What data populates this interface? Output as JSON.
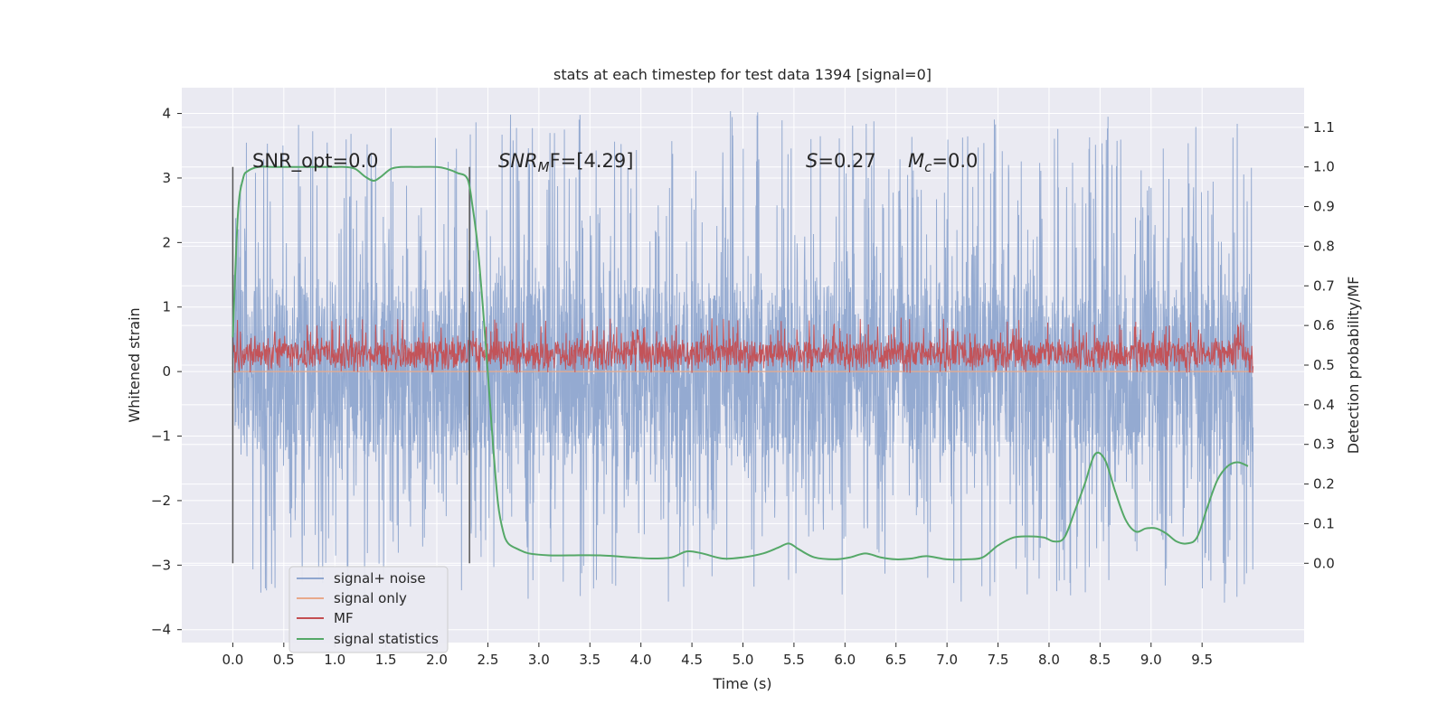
{
  "chart_data": {
    "type": "line",
    "title": "stats at each timestep for test data 1394 [signal=0]",
    "xlabel": "Time (s)",
    "ylabel": "Whitened strain",
    "y2label": "Detection probability/MF",
    "xlim": [
      -0.5,
      10.5
    ],
    "ylim": [
      -4.2,
      4.4
    ],
    "y2lim": [
      -0.2,
      1.2
    ],
    "x_ticks": [
      "0.0",
      "0.5",
      "1.0",
      "1.5",
      "2.0",
      "2.5",
      "3.0",
      "3.5",
      "4.0",
      "4.5",
      "5.0",
      "5.5",
      "6.0",
      "6.5",
      "7.0",
      "7.5",
      "8.0",
      "8.5",
      "9.0",
      "9.5"
    ],
    "y_ticks": [
      "4",
      "3",
      "2",
      "1",
      "0",
      "−1",
      "−2",
      "−3",
      "−4"
    ],
    "y2_ticks": [
      "1.1",
      "1.0",
      "0.9",
      "0.8",
      "0.7",
      "0.6",
      "0.5",
      "0.4",
      "0.3",
      "0.2",
      "0.1",
      "0.0"
    ],
    "grid": true,
    "legend_position": "lower-left",
    "annotations": {
      "snr_opt": "SNR_opt=0.0",
      "snr_mf_base": "SNR",
      "snr_mf_sub": "M",
      "snr_mf_rest": "F=[4.29]",
      "s_label": "S",
      "s_value": "=0.27",
      "mc_label": "M",
      "mc_sub": "c",
      "mc_value": "=0.0"
    },
    "vertical_markers_x": [
      0.0,
      2.32
    ],
    "series": [
      {
        "name": "signal+ noise",
        "color": "#8fa6cf",
        "axis": "left",
        "style": "dense-noise",
        "x_range": [
          0.0,
          10.0
        ],
        "approx_range": [
          -3.6,
          4.05
        ],
        "core_band": [
          -1.3,
          1.3
        ]
      },
      {
        "name": "signal only",
        "color": "#e8a98b",
        "axis": "left",
        "style": "line",
        "x": [
          0.0,
          10.0
        ],
        "y": [
          0.0,
          0.0
        ]
      },
      {
        "name": "MF",
        "color": "#c44e52",
        "axis": "right",
        "style": "dense-noise",
        "x_range": [
          0.0,
          10.0
        ],
        "approx_range": [
          0.48,
          0.62
        ],
        "core_band": [
          0.5,
          0.56
        ]
      },
      {
        "name": "signal statistics",
        "color": "#55a868",
        "axis": "right",
        "style": "line",
        "x": [
          0.0,
          0.05,
          0.1,
          0.15,
          0.25,
          0.4,
          0.6,
          0.8,
          1.0,
          1.1,
          1.2,
          1.3,
          1.38,
          1.45,
          1.55,
          1.65,
          1.8,
          2.0,
          2.1,
          2.2,
          2.3,
          2.35,
          2.4,
          2.45,
          2.5,
          2.55,
          2.6,
          2.65,
          2.7,
          2.8,
          2.9,
          3.1,
          3.3,
          3.6,
          3.9,
          4.1,
          4.3,
          4.45,
          4.6,
          4.8,
          5.0,
          5.2,
          5.35,
          5.45,
          5.55,
          5.7,
          5.9,
          6.05,
          6.2,
          6.35,
          6.5,
          6.65,
          6.8,
          7.0,
          7.2,
          7.35,
          7.5,
          7.65,
          7.8,
          7.95,
          8.05,
          8.15,
          8.25,
          8.35,
          8.45,
          8.55,
          8.65,
          8.75,
          8.85,
          8.95,
          9.05,
          9.15,
          9.25,
          9.35,
          9.45,
          9.55,
          9.65,
          9.75,
          9.85,
          9.95
        ],
        "y": [
          0.57,
          0.88,
          0.97,
          0.99,
          1.0,
          1.0,
          1.0,
          1.0,
          1.0,
          1.0,
          0.995,
          0.975,
          0.965,
          0.975,
          0.995,
          1.0,
          1.0,
          1.0,
          0.995,
          0.985,
          0.97,
          0.9,
          0.8,
          0.65,
          0.48,
          0.3,
          0.15,
          0.08,
          0.05,
          0.035,
          0.025,
          0.02,
          0.02,
          0.02,
          0.015,
          0.012,
          0.015,
          0.03,
          0.025,
          0.012,
          0.015,
          0.025,
          0.04,
          0.05,
          0.035,
          0.015,
          0.01,
          0.015,
          0.025,
          0.015,
          0.01,
          0.012,
          0.018,
          0.01,
          0.01,
          0.015,
          0.045,
          0.065,
          0.068,
          0.065,
          0.055,
          0.065,
          0.13,
          0.2,
          0.275,
          0.26,
          0.18,
          0.11,
          0.08,
          0.088,
          0.088,
          0.075,
          0.055,
          0.05,
          0.065,
          0.14,
          0.21,
          0.245,
          0.255,
          0.245
        ]
      }
    ]
  }
}
